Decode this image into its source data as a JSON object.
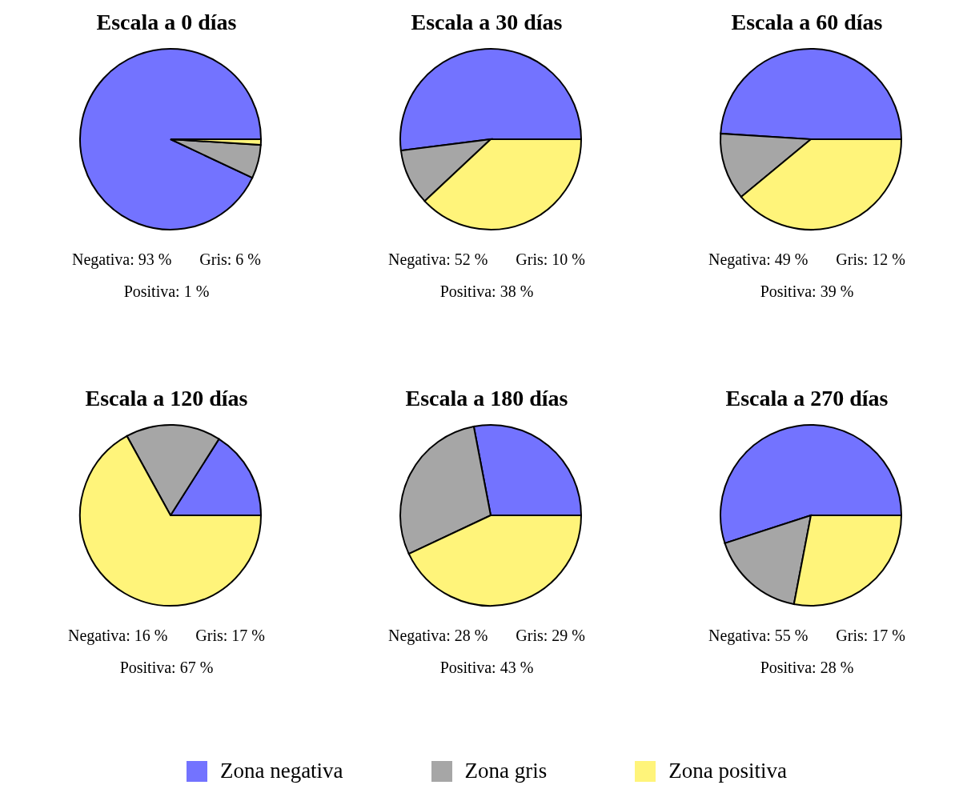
{
  "chart_data": [
    {
      "type": "pie",
      "title": "Escala a 0 días",
      "categories": [
        "Zona negativa",
        "Zona gris",
        "Zona positiva"
      ],
      "values": [
        93,
        6,
        1
      ],
      "colors": [
        "#7373ff",
        "#a6a6a6",
        "#fff47a"
      ],
      "annotations": [
        "Negativa: 93 %",
        "Gris: 6 %",
        "Positiva: 1 %"
      ],
      "legend": "bottom"
    },
    {
      "type": "pie",
      "title": "Escala a 30 días",
      "categories": [
        null,
        null,
        null
      ],
      "values": [
        52,
        10,
        38
      ],
      "colors": [
        "#7373ff",
        "#a6a6a6",
        "#fff47a"
      ],
      "annotations": [
        "Negativa: 52 %",
        "Gris: 10 %",
        "Positiva: 38 %"
      ]
    },
    {
      "type": "pie",
      "title": "Escala a 60 días",
      "categories": [
        null,
        null,
        null
      ],
      "values": [
        49,
        12,
        39
      ],
      "colors": [
        "#7373ff",
        "#a6a6a6",
        "#fff47a"
      ],
      "annotations": [
        "Negativa: 49 %",
        "Gris: 12 %",
        "Positiva: 39 %"
      ]
    },
    {
      "type": "pie",
      "title": "Escala a 120 días",
      "categories": [
        null,
        null,
        null
      ],
      "values": [
        16,
        17,
        67
      ],
      "colors": [
        "#7373ff",
        "#a6a6a6",
        "#fff47a"
      ],
      "annotations": [
        "Negativa: 16 %",
        "Gris: 17 %",
        "Positiva: 67 %"
      ]
    },
    {
      "type": "pie",
      "title": "Escala a 180 días",
      "categories": [
        null,
        null,
        null
      ],
      "values": [
        28,
        29,
        43
      ],
      "colors": [
        "#7373ff",
        "#a6a6a6",
        "#fff47a"
      ],
      "annotations": [
        "Negativa: 28 %",
        "Gris: 29 %",
        "Positiva: 43 %"
      ]
    },
    {
      "type": "pie",
      "title": "Escala a 270 días",
      "categories": [
        null,
        null,
        null
      ],
      "values": [
        55,
        17,
        28
      ],
      "colors": [
        "#7373ff",
        "#a6a6a6",
        "#fff47a"
      ],
      "annotations": [
        "Negativa: 55 %",
        "Gris: 17 %",
        "Positiva: 28 %"
      ]
    }
  ]
}
